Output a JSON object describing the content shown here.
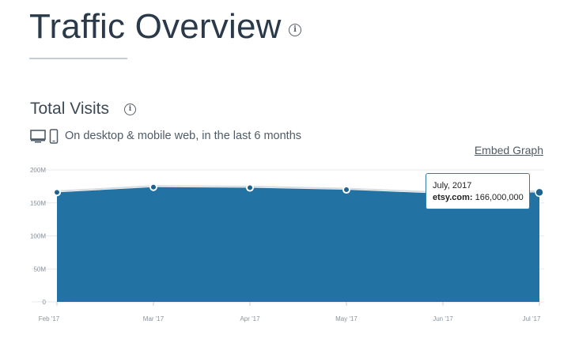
{
  "header": {
    "title": "Traffic Overview",
    "info_icon": "info-circle-icon"
  },
  "section": {
    "title": "Total Visits",
    "info_icon": "info-circle-icon",
    "device_icons": [
      "desktop-icon",
      "mobile-icon"
    ],
    "subtitle": "On desktop & mobile web, in the last 6 months",
    "embed_label": "Embed Graph"
  },
  "tooltip": {
    "date": "July, 2017",
    "site_label": "etsy.com:",
    "value": "166,000,000"
  },
  "colors": {
    "area": "#2272a3",
    "point": "#1c6390",
    "title": "#2b3a4a",
    "grid": "#e6e9ec",
    "tooltip_border": "#2f7cab"
  },
  "chart_data": {
    "type": "area",
    "title": "",
    "xlabel": "",
    "ylabel": "",
    "categories": [
      "Feb '17",
      "Mar '17",
      "Apr '17",
      "May '17",
      "Jun '17",
      "Jul '17"
    ],
    "ylim": [
      0,
      200000000
    ],
    "yticks": [
      0,
      50000000,
      100000000,
      150000000,
      200000000
    ],
    "ytick_labels": [
      "0",
      "50M",
      "100M",
      "150M",
      "200M"
    ],
    "grid": true,
    "series": [
      {
        "values": [
          166000000,
          174000000,
          173000000,
          170000000,
          164000000,
          166000000
        ]
      }
    ],
    "highlighted_index": 5
  }
}
